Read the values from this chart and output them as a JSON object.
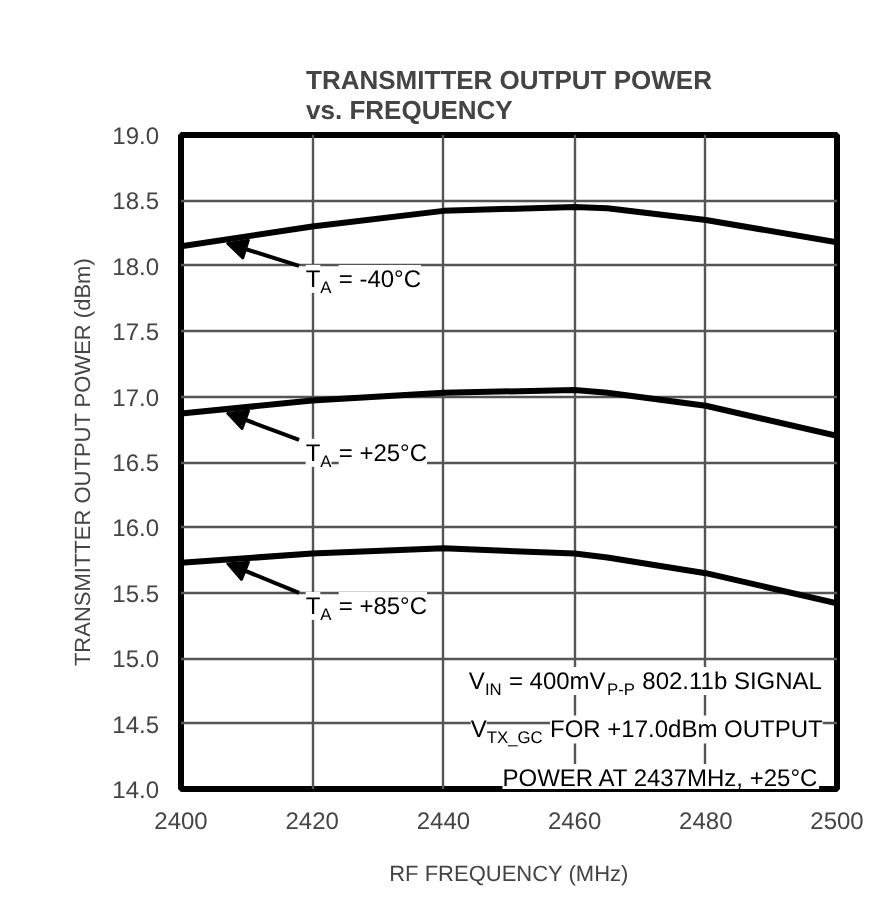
{
  "chart_data": {
    "type": "line",
    "title": "TRANSMITTER OUTPUT POWER\nvs. FREQUENCY",
    "xlabel": "RF FREQUENCY (MHz)",
    "ylabel": "TRANSMITTER OUTPUT POWER (dBm)",
    "x": [
      2400,
      2420,
      2440,
      2460,
      2465,
      2480,
      2500
    ],
    "series": [
      {
        "name": "T$_{A}$ = -40°C",
        "color": "#000000",
        "values": [
          18.15,
          18.3,
          18.42,
          18.45,
          18.44,
          18.35,
          18.18
        ]
      },
      {
        "name": "T$_{A}$ = +25°C",
        "color": "#000000",
        "values": [
          16.87,
          16.97,
          17.03,
          17.05,
          17.03,
          16.93,
          16.7
        ]
      },
      {
        "name": "T$_{A}$ = +85°C",
        "color": "#000000",
        "values": [
          15.73,
          15.8,
          15.84,
          15.8,
          15.77,
          15.65,
          15.42
        ]
      }
    ],
    "xlim": [
      2400,
      2500
    ],
    "xticks": [
      2400,
      2420,
      2440,
      2460,
      2480,
      2500
    ],
    "ylim": [
      14.0,
      19.0
    ],
    "yticks": [
      {
        "value": 14.0,
        "label": "14.0"
      },
      {
        "value": 14.5,
        "label": "14.5"
      },
      {
        "value": 15.0,
        "label": "15.0"
      },
      {
        "value": 15.5,
        "label": "15.5"
      },
      {
        "value": 16.0,
        "label": "16.0"
      },
      {
        "value": 16.5,
        "label": "16.5"
      },
      {
        "value": 17.0,
        "label": "17.0"
      },
      {
        "value": 17.5,
        "label": "17.5"
      },
      {
        "value": 18.0,
        "label": "18.0"
      },
      {
        "value": 18.5,
        "label": "18.5"
      },
      {
        "value": 19.0,
        "label": "19.0"
      }
    ],
    "grid": true,
    "marker": "none",
    "line_style": "solid",
    "annotations": [
      "V$_{IN}$ = 400mV$_{P-P}$ 802.11b SIGNAL",
      "V$_{TX_GC}$ FOR +17.0dBm OUTPUT",
      "POWER AT 2437MHz, +25°C"
    ]
  }
}
